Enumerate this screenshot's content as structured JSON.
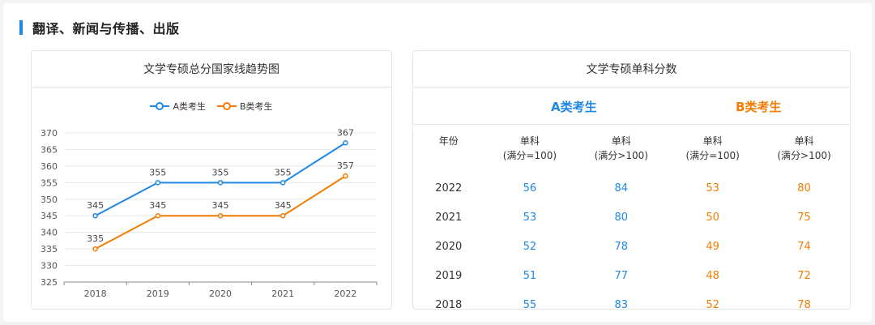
{
  "section": {
    "title": "翻译、新闻与传播、出版"
  },
  "left_card": {
    "title": "文学专硕总分国家线趋势图"
  },
  "legend": [
    {
      "label": "A类考生",
      "color": "#1e88e5"
    },
    {
      "label": "B类考生",
      "color": "#f57c00"
    }
  ],
  "chart_data": {
    "type": "line",
    "x": [
      "2018",
      "2019",
      "2020",
      "2021",
      "2022"
    ],
    "series": [
      {
        "name": "A类考生",
        "color": "#1e88e5",
        "values": [
          345,
          355,
          355,
          355,
          367
        ]
      },
      {
        "name": "B类考生",
        "color": "#f57c00",
        "values": [
          335,
          345,
          345,
          345,
          357
        ]
      }
    ],
    "ylim": [
      325,
      370
    ],
    "yticks": [
      325,
      330,
      335,
      340,
      345,
      350,
      355,
      360,
      365,
      370
    ],
    "grid": true,
    "legend": "top-center"
  },
  "right_card": {
    "title": "文学专硕单科分数",
    "group_a": "A类考生",
    "group_b": "B类考生",
    "headers": [
      "年份",
      "单科\n(满分=100)",
      "单科\n(满分>100)",
      "单科\n(满分=100)",
      "单科\n(满分>100)"
    ],
    "rows": [
      [
        "2022",
        "56",
        "84",
        "53",
        "80"
      ],
      [
        "2021",
        "53",
        "80",
        "50",
        "75"
      ],
      [
        "2020",
        "52",
        "78",
        "49",
        "74"
      ],
      [
        "2019",
        "51",
        "77",
        "48",
        "72"
      ],
      [
        "2018",
        "55",
        "83",
        "52",
        "78"
      ]
    ]
  }
}
